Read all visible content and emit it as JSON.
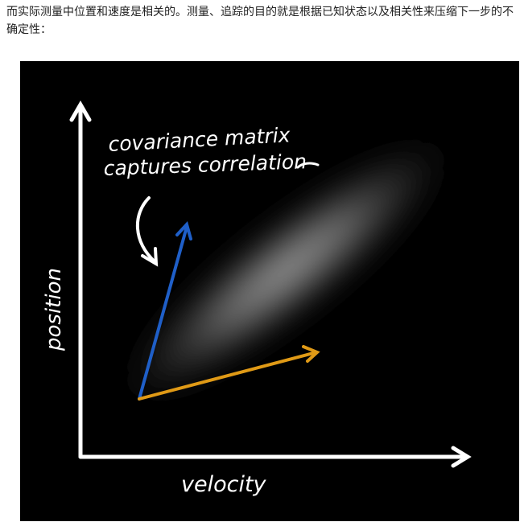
{
  "article": {
    "paragraph": "而实际测量中位置和速度是相关的。测量、追踪的目的就是根据已知状态以及相关性来压缩下一步的不确定性："
  },
  "figure": {
    "annotation_line1": "covariance matrix",
    "annotation_line2": "captures correlation",
    "x_axis_label": "velocity",
    "y_axis_label": "position",
    "colors": {
      "background": "#000000",
      "axes": "#ffffff",
      "blob": "#9a9a9a",
      "vector_position": "#1f5fc8",
      "vector_velocity": "#e09a16"
    }
  }
}
